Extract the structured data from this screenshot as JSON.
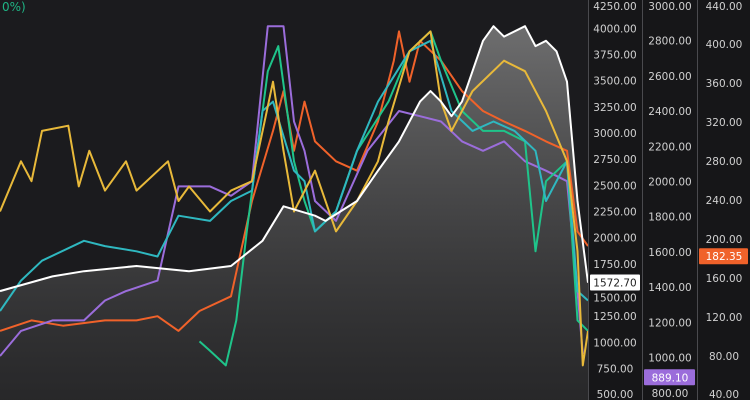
{
  "top_note": "0%)",
  "chart_data": {
    "type": "line",
    "title": "",
    "xlabel": "",
    "ylabel": "",
    "grid": false,
    "y_axes": [
      {
        "ticks": [
          4250,
          4000,
          3750,
          3500,
          3250,
          3000,
          2750,
          2500,
          2250,
          2000,
          1750,
          1500,
          1250,
          1000,
          750,
          500
        ],
        "range": [
          450,
          4270
        ],
        "badge": {
          "value": "1572.70",
          "color": "#ffffff",
          "text_color": "#222222",
          "at": 1572.7
        }
      },
      {
        "ticks": [
          3000,
          2800,
          2600,
          2400,
          2200,
          2000,
          1800,
          1600,
          1400,
          1200,
          1000,
          800
        ],
        "range": [
          760,
          3030
        ],
        "badge": {
          "value": "889.10",
          "color": "#9b6ddb",
          "text_color": "#ffffff",
          "at": 889.1
        }
      },
      {
        "ticks": [
          440,
          400,
          360,
          320,
          280,
          240,
          200,
          160,
          120,
          80,
          40
        ],
        "range": [
          35,
          445
        ],
        "badge": {
          "value": "182.35",
          "color": "#f0622a",
          "text_color": "#ffffff",
          "at": 182.35
        }
      }
    ],
    "series": [
      {
        "color": "#ffffff",
        "fill": true,
        "points": [
          [
            0,
            1490
          ],
          [
            5,
            1630
          ],
          [
            8,
            1680
          ],
          [
            13,
            1730
          ],
          [
            18,
            1680
          ],
          [
            22,
            1730
          ],
          [
            25,
            1970
          ],
          [
            27,
            2300
          ],
          [
            30,
            2210
          ],
          [
            31,
            2160
          ],
          [
            34,
            2350
          ],
          [
            36,
            2640
          ],
          [
            38,
            2920
          ],
          [
            40,
            3300
          ],
          [
            41,
            3400
          ],
          [
            42,
            3300
          ],
          [
            43,
            3160
          ],
          [
            44,
            3300
          ],
          [
            46,
            3880
          ],
          [
            47,
            4020
          ],
          [
            48,
            3920
          ],
          [
            50,
            4020
          ],
          [
            51,
            3830
          ],
          [
            52,
            3880
          ],
          [
            53,
            3780
          ],
          [
            54,
            3490
          ],
          [
            55,
            2350
          ],
          [
            56,
            1570
          ]
        ]
      },
      {
        "color": "#e8b93a",
        "points": [
          [
            0,
            2250
          ],
          [
            2,
            2730
          ],
          [
            3,
            2540
          ],
          [
            4,
            3020
          ],
          [
            6.5,
            3070
          ],
          [
            7.5,
            2490
          ],
          [
            8.5,
            2830
          ],
          [
            10,
            2450
          ],
          [
            12,
            2730
          ],
          [
            13,
            2450
          ],
          [
            16,
            2730
          ],
          [
            17,
            2350
          ],
          [
            18,
            2490
          ],
          [
            20,
            2250
          ],
          [
            22,
            2450
          ],
          [
            24,
            2540
          ],
          [
            26,
            3490
          ],
          [
            27,
            2830
          ],
          [
            28,
            2250
          ],
          [
            30,
            2640
          ],
          [
            32,
            2060
          ],
          [
            34,
            2350
          ],
          [
            36,
            2730
          ],
          [
            37,
            3110
          ],
          [
            39,
            3780
          ],
          [
            41,
            3970
          ],
          [
            42,
            3300
          ],
          [
            43,
            3020
          ],
          [
            45,
            3400
          ],
          [
            48,
            3690
          ],
          [
            50,
            3590
          ],
          [
            52,
            3210
          ],
          [
            54,
            2730
          ],
          [
            55,
            1870
          ],
          [
            55.5,
            780
          ],
          [
            56,
            1110
          ]
        ]
      },
      {
        "color": "#2fb8c0",
        "points": [
          [
            0,
            1300
          ],
          [
            2,
            1590
          ],
          [
            4,
            1780
          ],
          [
            8,
            1970
          ],
          [
            10,
            1920
          ],
          [
            13,
            1870
          ],
          [
            15,
            1820
          ],
          [
            17,
            2210
          ],
          [
            20,
            2160
          ],
          [
            22,
            2350
          ],
          [
            24,
            2450
          ],
          [
            25,
            3210
          ],
          [
            26,
            3300
          ],
          [
            28,
            2640
          ],
          [
            29,
            2540
          ],
          [
            30,
            2060
          ],
          [
            32,
            2250
          ],
          [
            34,
            2830
          ],
          [
            36,
            3300
          ],
          [
            39,
            3780
          ],
          [
            41,
            3880
          ],
          [
            43,
            3210
          ],
          [
            45,
            3020
          ],
          [
            47,
            3110
          ],
          [
            49,
            3020
          ],
          [
            51,
            2830
          ],
          [
            52,
            2350
          ],
          [
            54,
            2730
          ],
          [
            55,
            1490
          ],
          [
            56,
            1400
          ]
        ]
      },
      {
        "color": "#1fc48a",
        "points": [
          [
            19,
            1010
          ],
          [
            20,
            920
          ],
          [
            21.5,
            780
          ],
          [
            22.5,
            1210
          ],
          [
            23.5,
            2060
          ],
          [
            24.5,
            2830
          ],
          [
            25.5,
            3590
          ],
          [
            26.5,
            3830
          ],
          [
            28,
            2730
          ],
          [
            29,
            2350
          ],
          [
            30,
            2060
          ],
          [
            32,
            2250
          ],
          [
            34,
            2830
          ],
          [
            37,
            3300
          ],
          [
            39,
            3780
          ],
          [
            41,
            3970
          ],
          [
            42,
            3690
          ],
          [
            44,
            3210
          ],
          [
            46,
            3020
          ],
          [
            48,
            3020
          ],
          [
            50,
            2920
          ],
          [
            51,
            1870
          ],
          [
            52,
            2540
          ],
          [
            54,
            2730
          ],
          [
            55,
            1210
          ],
          [
            56,
            1110
          ]
        ]
      },
      {
        "color": "#9b6ddb",
        "points": [
          [
            0,
            870
          ],
          [
            2,
            1110
          ],
          [
            5,
            1210
          ],
          [
            8,
            1210
          ],
          [
            10,
            1400
          ],
          [
            12,
            1490
          ],
          [
            15,
            1590
          ],
          [
            17,
            2490
          ],
          [
            20,
            2490
          ],
          [
            22,
            2400
          ],
          [
            24,
            2540
          ],
          [
            25.5,
            4020
          ],
          [
            27,
            4020
          ],
          [
            28,
            3110
          ],
          [
            29,
            2830
          ],
          [
            30,
            2350
          ],
          [
            32,
            2160
          ],
          [
            35,
            2830
          ],
          [
            38,
            3210
          ],
          [
            40,
            3160
          ],
          [
            42,
            3110
          ],
          [
            44,
            2920
          ],
          [
            46,
            2830
          ],
          [
            48,
            2920
          ],
          [
            50,
            2730
          ],
          [
            52,
            2640
          ],
          [
            54,
            2540
          ],
          [
            55,
            1490
          ],
          [
            55.5,
            889
          ]
        ]
      },
      {
        "color": "#f0622a",
        "points": [
          [
            0,
            1110
          ],
          [
            3,
            1210
          ],
          [
            6,
            1160
          ],
          [
            10,
            1210
          ],
          [
            13,
            1210
          ],
          [
            15,
            1250
          ],
          [
            17,
            1110
          ],
          [
            19,
            1300
          ],
          [
            22,
            1440
          ],
          [
            24,
            2350
          ],
          [
            26,
            3020
          ],
          [
            27,
            3400
          ],
          [
            28,
            2830
          ],
          [
            29,
            3300
          ],
          [
            30,
            2920
          ],
          [
            32,
            2730
          ],
          [
            34,
            2640
          ],
          [
            36,
            3110
          ],
          [
            37.5,
            3690
          ],
          [
            38,
            3970
          ],
          [
            39,
            3490
          ],
          [
            40,
            3880
          ],
          [
            42,
            3690
          ],
          [
            44,
            3400
          ],
          [
            46,
            3210
          ],
          [
            48,
            3110
          ],
          [
            50,
            3020
          ],
          [
            52,
            2920
          ],
          [
            54,
            2830
          ],
          [
            55,
            2060
          ],
          [
            56,
            1920
          ]
        ]
      }
    ]
  }
}
